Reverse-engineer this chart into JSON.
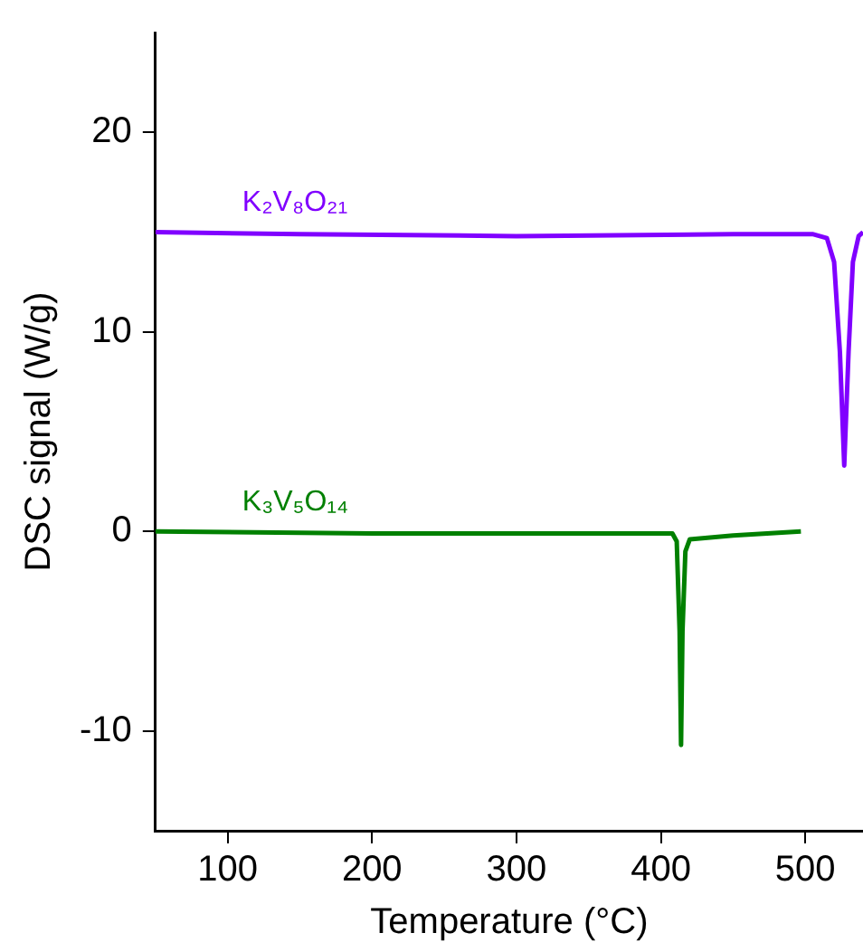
{
  "chart_data": {
    "type": "line",
    "xlabel": "Temperature (°C)",
    "ylabel": "DSC signal (W/g)",
    "xlim": [
      50,
      540
    ],
    "xticks": [
      100,
      200,
      300,
      400,
      500
    ],
    "ylim": [
      -15,
      25
    ],
    "yticks": [
      -10,
      0,
      10,
      20
    ],
    "grid": false,
    "legend": false,
    "marker": "none",
    "line_style": "solid",
    "series": [
      {
        "name": "K₂V₈O₂₁",
        "color": "#8000ff",
        "x": [
          50,
          150,
          300,
          450,
          505,
          515,
          520,
          524,
          527,
          530,
          533,
          537,
          540
        ],
        "values": [
          15,
          14.9,
          14.8,
          14.9,
          14.9,
          14.7,
          13.5,
          9,
          3.3,
          9,
          13.5,
          14.8,
          15
        ]
      },
      {
        "name": "K₃V₅O₁₄",
        "color": "#008000",
        "x": [
          50,
          200,
          350,
          408,
          411,
          413,
          414,
          415,
          417,
          420,
          450,
          497
        ],
        "values": [
          0,
          -0.1,
          -0.1,
          -0.1,
          -0.5,
          -5,
          -10.7,
          -5,
          -1,
          -0.4,
          -0.2,
          0
        ]
      }
    ]
  }
}
